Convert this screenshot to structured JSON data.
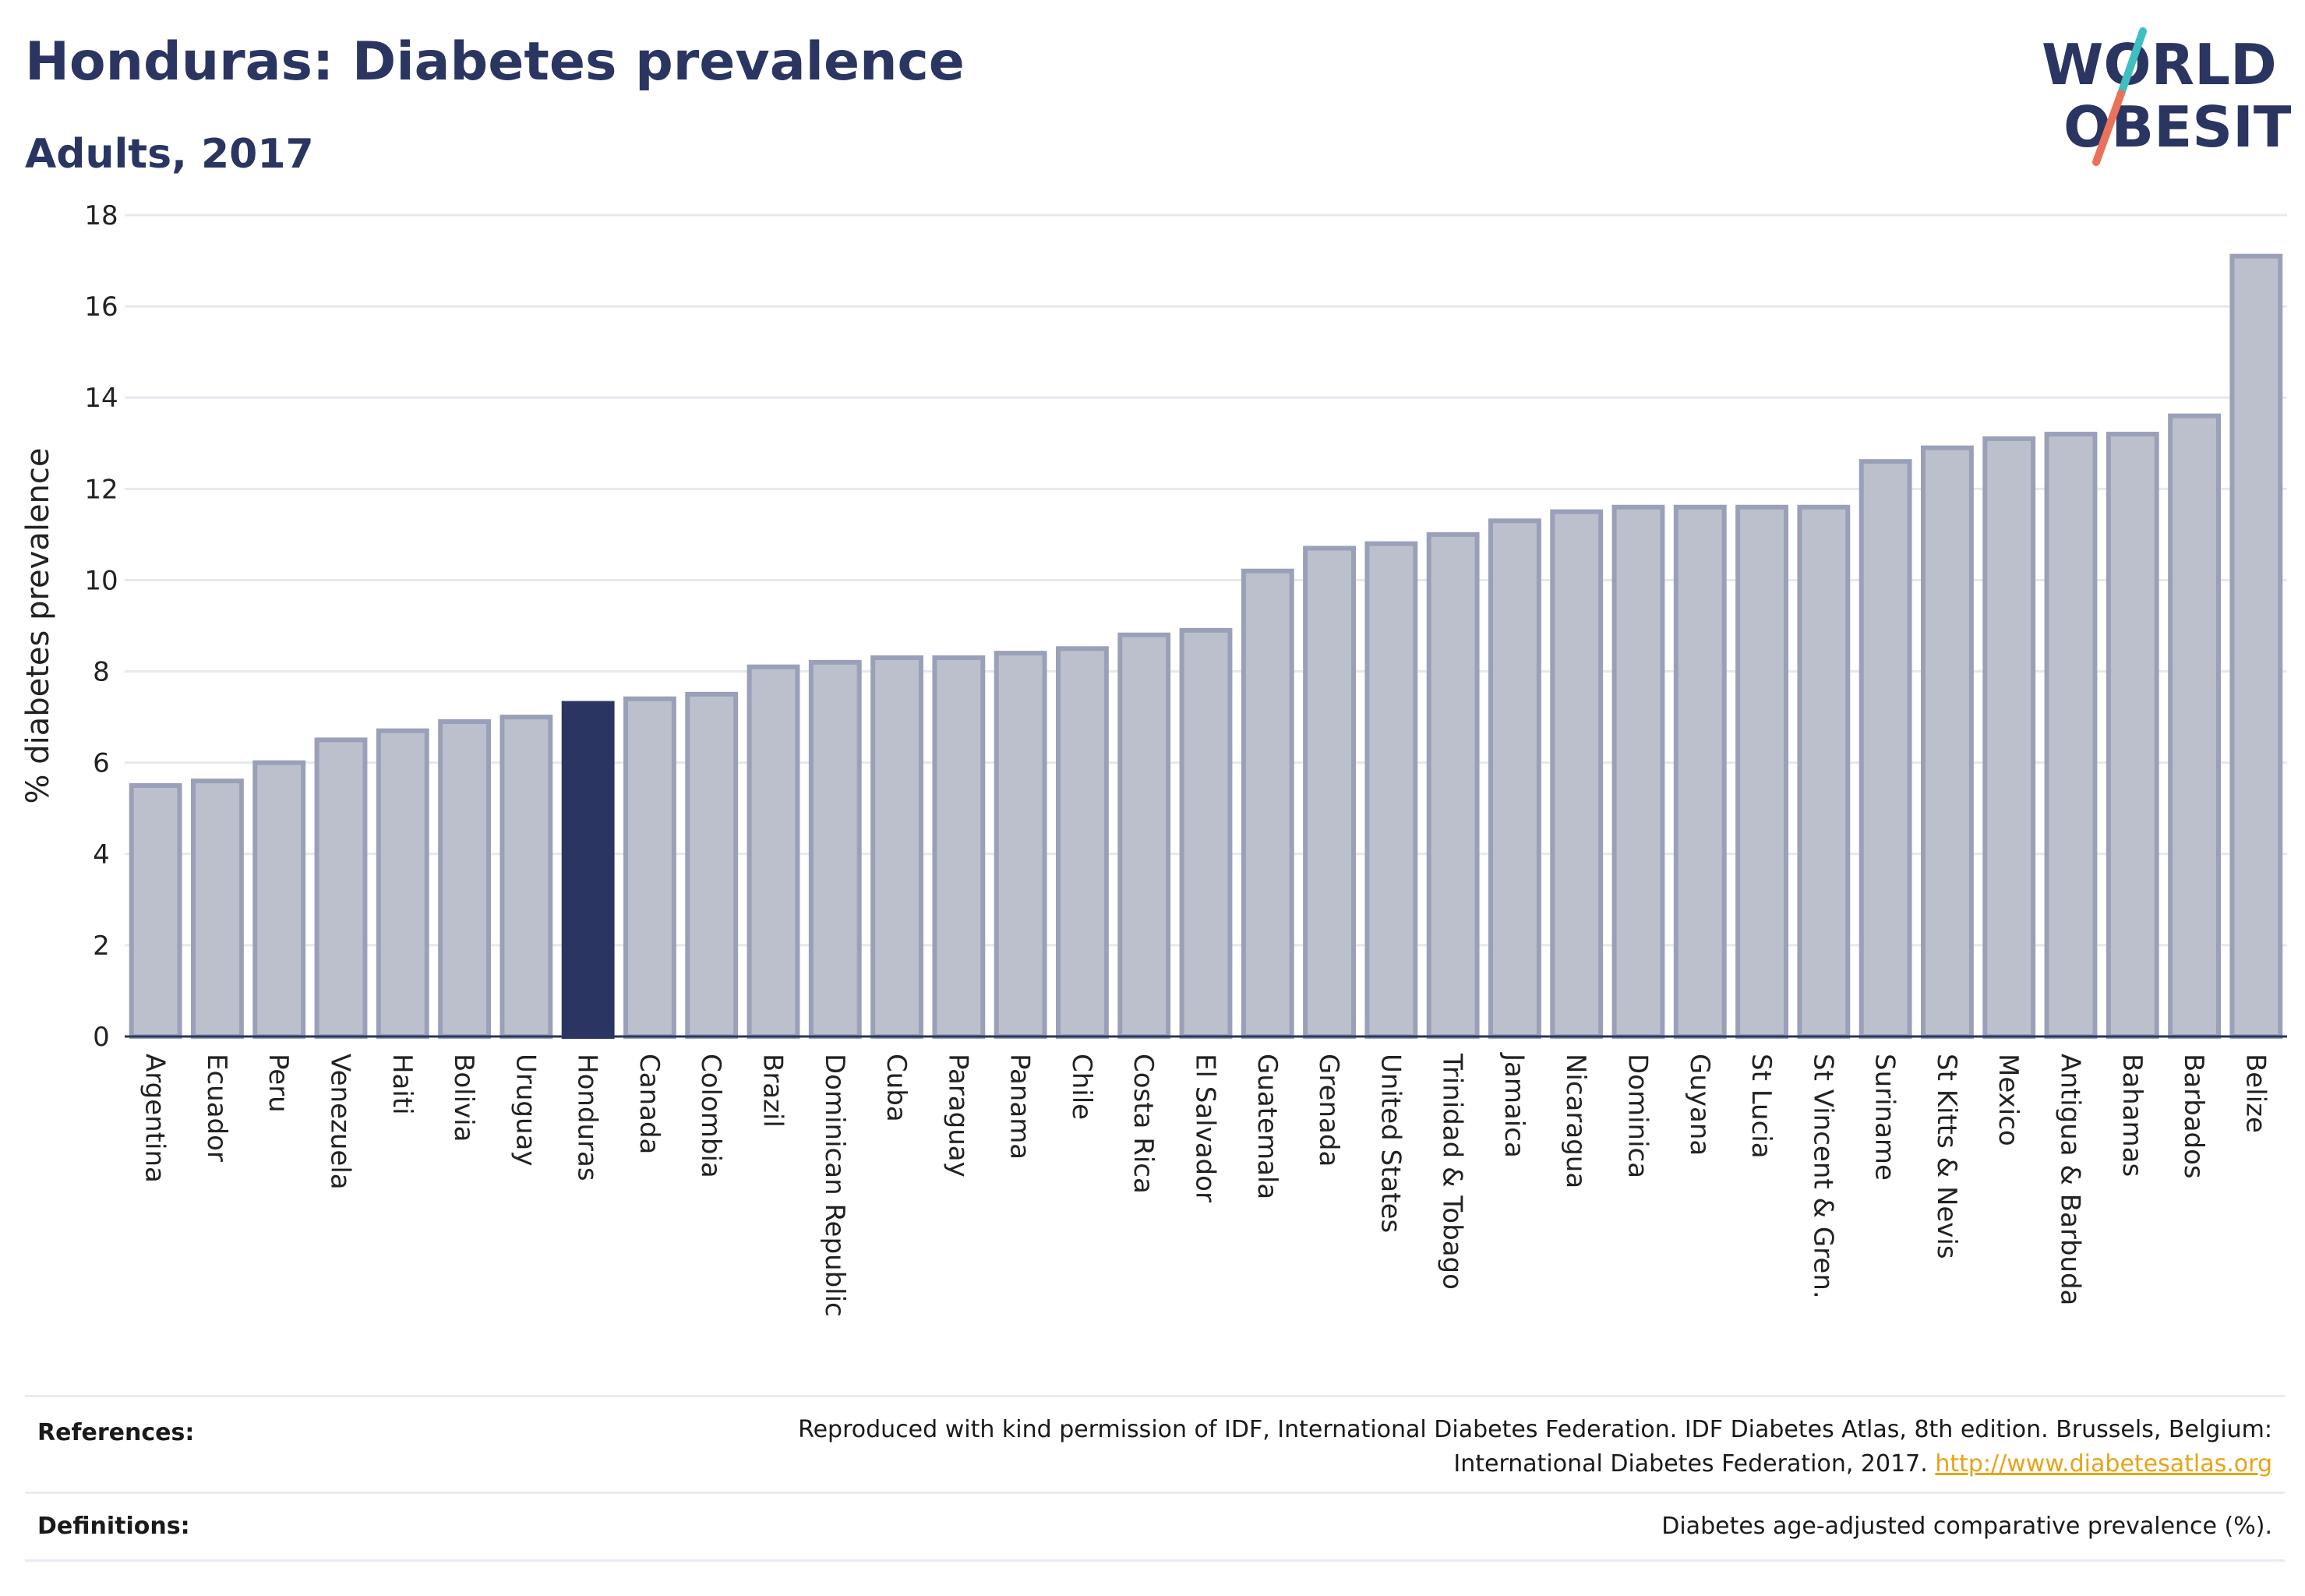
{
  "header": {
    "title": "Honduras: Diabetes prevalence",
    "subtitle": "Adults, 2017"
  },
  "logo": {
    "line1": "WORLD",
    "line2": "OBESITY",
    "accent_colors": [
      "#3fbfbf",
      "#e8735a"
    ]
  },
  "colors": {
    "bar_default": "#bcc0cd",
    "bar_outline": "#9aa0b8",
    "bar_highlight": "#2b3561"
  },
  "chart_data": {
    "type": "bar",
    "ylabel": "% diabetes prevalence",
    "ylim": [
      0,
      18
    ],
    "yticks": [
      0,
      2,
      4,
      6,
      8,
      10,
      12,
      14,
      16,
      18
    ],
    "grid": true,
    "highlight": "Honduras",
    "categories": [
      "Argentina",
      "Ecuador",
      "Peru",
      "Venezuela",
      "Haiti",
      "Bolivia",
      "Uruguay",
      "Honduras",
      "Canada",
      "Colombia",
      "Brazil",
      "Dominican Republic",
      "Cuba",
      "Paraguay",
      "Panama",
      "Chile",
      "Costa Rica",
      "El Salvador",
      "Guatemala",
      "Grenada",
      "United States",
      "Trinidad & Tobago",
      "Jamaica",
      "Nicaragua",
      "Dominica",
      "Guyana",
      "St Lucia",
      "St Vincent & Gren.",
      "Suriname",
      "St Kitts & Nevis",
      "Mexico",
      "Antigua & Barbuda",
      "Bahamas",
      "Barbados",
      "Belize"
    ],
    "values": [
      5.5,
      5.6,
      6.0,
      6.5,
      6.7,
      6.9,
      7.0,
      7.3,
      7.4,
      7.5,
      8.1,
      8.2,
      8.3,
      8.3,
      8.4,
      8.5,
      8.8,
      8.9,
      10.2,
      10.7,
      10.8,
      11.0,
      11.3,
      11.5,
      11.6,
      11.6,
      11.6,
      11.6,
      12.6,
      12.9,
      13.1,
      13.2,
      13.2,
      13.6,
      17.1
    ]
  },
  "footer": {
    "references_label": "References:",
    "references_text_1": "Reproduced with kind permission of IDF, International Diabetes Federation. IDF Diabetes Atlas, 8th edition. Brussels, Belgium:",
    "references_text_2": "International Diabetes Federation, 2017.",
    "references_link": "http://www.diabetesatlas.org",
    "definitions_label": "Definitions:",
    "definitions_text": "Diabetes age-adjusted comparative prevalence (%)."
  }
}
